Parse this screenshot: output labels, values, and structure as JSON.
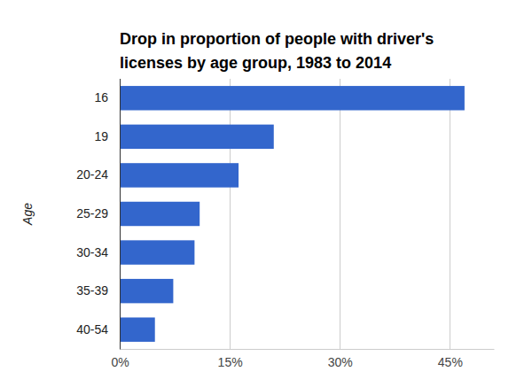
{
  "chart_data": {
    "type": "bar",
    "orientation": "horizontal",
    "title": "Drop in proportion of people with driver's licenses by age group, 1983 to 2014",
    "y_label": "Age",
    "categories": [
      "16",
      "19",
      "20-24",
      "25-29",
      "30-34",
      "35-39",
      "40-54"
    ],
    "values": [
      47.0,
      21.0,
      16.2,
      10.9,
      10.2,
      7.3,
      4.8
    ],
    "color": "#3366cc",
    "xlim": [
      0,
      51
    ],
    "xticks": [
      {
        "value": 0,
        "label": "0%"
      },
      {
        "value": 15,
        "label": "15%"
      },
      {
        "value": 30,
        "label": "30%"
      },
      {
        "value": 45,
        "label": "45%"
      }
    ],
    "grid": true
  }
}
